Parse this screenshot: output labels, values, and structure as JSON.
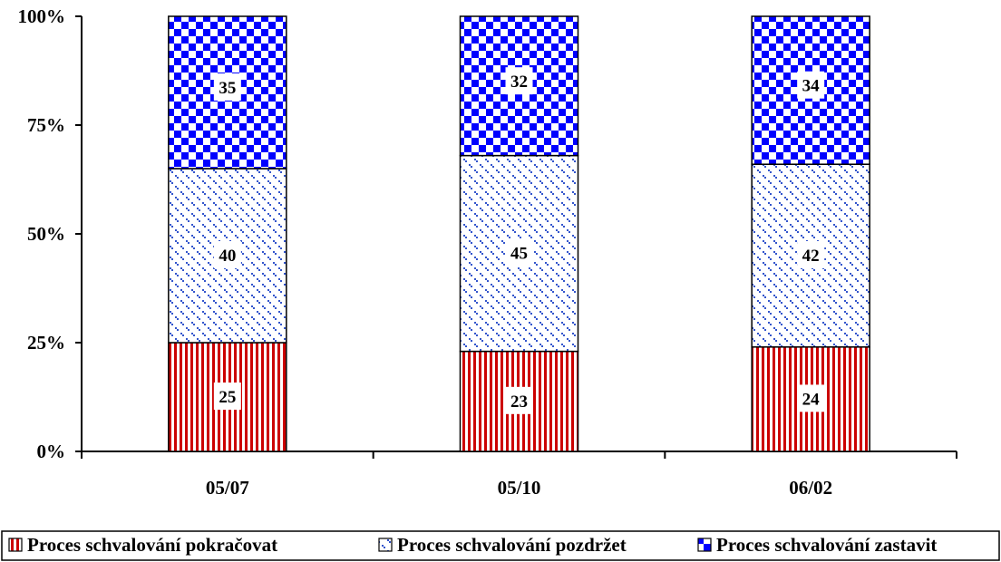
{
  "chart_data": {
    "type": "bar",
    "stacked": true,
    "percent_stacked": true,
    "categories": [
      "05/07",
      "05/10",
      "06/02"
    ],
    "series": [
      {
        "name": "Proces schvalování pokračovat",
        "values": [
          25,
          23,
          24
        ],
        "color": "#cc0000",
        "pattern": "vertical-stripes"
      },
      {
        "name": "Proces schvalování pozdržet",
        "values": [
          40,
          45,
          42
        ],
        "color": "#3333cc",
        "pattern": "dotted"
      },
      {
        "name": "Proces schvalování zastavit",
        "values": [
          35,
          32,
          34
        ],
        "color": "#0000ff",
        "pattern": "checkerboard"
      }
    ],
    "y_ticks": [
      "0%",
      "25%",
      "50%",
      "75%",
      "100%"
    ],
    "ylim": [
      0,
      100
    ],
    "grid": false,
    "legend_position": "bottom",
    "title": "",
    "xlabel": "",
    "ylabel": ""
  }
}
